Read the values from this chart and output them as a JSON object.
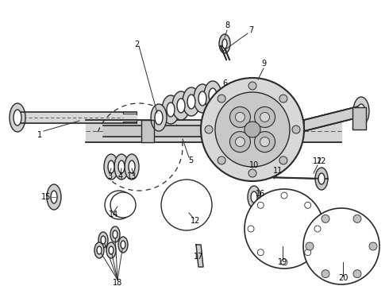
{
  "bg_color": "#f5f5f5",
  "line_color": "#2a2a2a",
  "figsize": [
    4.9,
    3.6
  ],
  "dpi": 100,
  "labels": [
    [
      "1",
      45,
      175
    ],
    [
      "2",
      175,
      60
    ],
    [
      "3",
      148,
      218
    ],
    [
      "4",
      162,
      218
    ],
    [
      "5",
      238,
      195
    ],
    [
      "6",
      282,
      105
    ],
    [
      "7",
      318,
      38
    ],
    [
      "8",
      286,
      35
    ],
    [
      "9",
      330,
      80
    ],
    [
      "10",
      320,
      210
    ],
    [
      "11",
      348,
      215
    ],
    [
      "12",
      400,
      205
    ],
    [
      "12",
      248,
      278
    ],
    [
      "13",
      175,
      222
    ],
    [
      "14",
      148,
      268
    ],
    [
      "15",
      68,
      248
    ],
    [
      "16",
      328,
      245
    ],
    [
      "17",
      252,
      320
    ],
    [
      "18",
      160,
      355
    ],
    [
      "19",
      358,
      330
    ],
    [
      "20",
      432,
      348
    ]
  ]
}
